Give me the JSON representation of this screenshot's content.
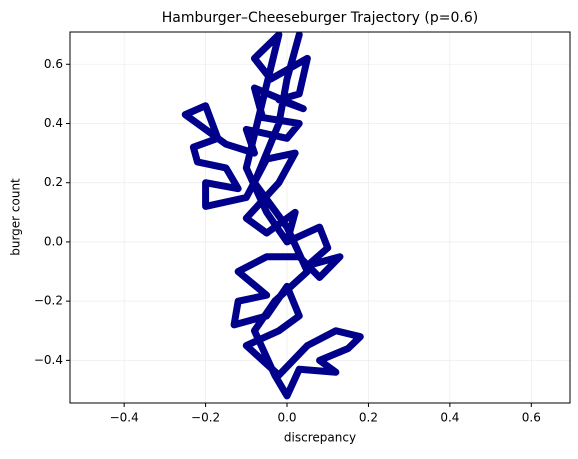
{
  "chart_data": {
    "type": "line",
    "title": "Hamburger–Cheeseburger Trajectory (p=0.6)",
    "x_label": "discrepancy",
    "y_label": "burger count",
    "grid": true,
    "xlim": [
      -0.533,
      0.695
    ],
    "ylim": [
      -0.544,
      0.709
    ],
    "xticks": [
      {
        "value": -0.4,
        "label": "−0.4"
      },
      {
        "value": -0.2,
        "label": "−0.2"
      },
      {
        "value": 0,
        "label": "0.0"
      },
      0.2,
      0.4,
      0.6
    ],
    "yticks": [
      {
        "value": -0.4,
        "label": "−0.4"
      },
      {
        "value": -0.2,
        "label": "−0.2"
      },
      {
        "value": 0,
        "label": "0.0"
      },
      0.2,
      0.4,
      0.6
    ],
    "x": [
      0.0,
      -0.05,
      -0.1,
      -0.02,
      -0.08,
      -0.04,
      0.05,
      0.03,
      -0.02,
      0.04,
      -0.08,
      -0.06,
      0.03,
      0.0,
      -0.1,
      -0.08,
      -0.15,
      -0.25,
      -0.2,
      -0.17,
      -0.23,
      -0.22,
      -0.15,
      -0.12,
      -0.2,
      -0.2,
      -0.1,
      -0.05,
      0.02,
      -0.02,
      -0.1,
      -0.05,
      0.02,
      0.0,
      0.08,
      0.1,
      0.05,
      0.13,
      0.08,
      0.03,
      -0.05,
      -0.12,
      -0.05,
      -0.12,
      -0.13,
      -0.05,
      0.0,
      0.03,
      -0.02,
      -0.1,
      -0.06,
      -0.02,
      0.05,
      0.12,
      0.18,
      0.15,
      0.08,
      0.12,
      0.03,
      0.0,
      -0.03,
      -0.08,
      -0.03,
      0.05,
      0.0,
      -0.08,
      -0.02,
      0.0,
      0.03
    ],
    "series": [
      {
        "name": "trajectory",
        "color": "#00008b",
        "values": [
          0.0,
          0.1,
          0.25,
          0.7,
          0.62,
          0.55,
          0.62,
          0.5,
          0.48,
          0.45,
          0.52,
          0.42,
          0.4,
          0.35,
          0.38,
          0.3,
          0.33,
          0.43,
          0.46,
          0.35,
          0.32,
          0.27,
          0.25,
          0.18,
          0.2,
          0.12,
          0.15,
          0.28,
          0.3,
          0.2,
          0.08,
          0.03,
          0.1,
          0.0,
          0.05,
          -0.02,
          -0.08,
          -0.05,
          -0.12,
          -0.05,
          -0.05,
          -0.1,
          -0.18,
          -0.2,
          -0.28,
          -0.25,
          -0.15,
          -0.25,
          -0.3,
          -0.35,
          -0.4,
          -0.45,
          -0.35,
          -0.3,
          -0.32,
          -0.36,
          -0.4,
          -0.44,
          -0.43,
          -0.52,
          -0.45,
          -0.3,
          -0.2,
          -0.1,
          0.05,
          0.2,
          0.4,
          0.55,
          0.7
        ]
      }
    ]
  }
}
